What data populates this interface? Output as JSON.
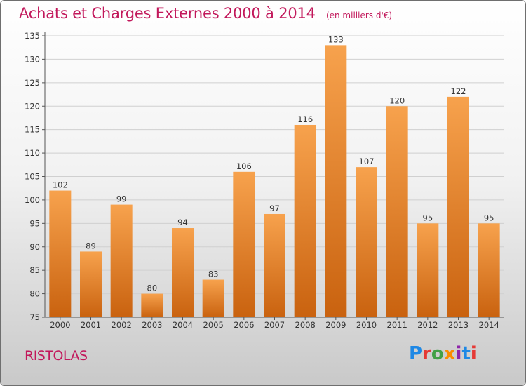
{
  "header": {
    "title": "Achats et Charges Externes 2000 à 2014",
    "unit": "(en milliers d'€)"
  },
  "footer": {
    "town": "RISTOLAS",
    "brand": "Proxiti",
    "brand_letters": [
      {
        "ch": "P",
        "color": "#1e88e5"
      },
      {
        "ch": "r",
        "color": "#e53935"
      },
      {
        "ch": "o",
        "color": "#43a047"
      },
      {
        "ch": "x",
        "color": "#fb8c00"
      },
      {
        "ch": "i",
        "color": "#8e24aa"
      },
      {
        "ch": "t",
        "color": "#1e88e5"
      },
      {
        "ch": "i",
        "color": "#e53935"
      }
    ]
  },
  "chart_data": {
    "type": "bar",
    "title": "Achats et Charges Externes 2000 à 2014",
    "categories": [
      "2000",
      "2001",
      "2002",
      "2003",
      "2004",
      "2005",
      "2006",
      "2007",
      "2008",
      "2009",
      "2010",
      "2011",
      "2012",
      "2013",
      "2014"
    ],
    "values": [
      102,
      89,
      99,
      80,
      94,
      83,
      106,
      97,
      116,
      133,
      107,
      120,
      95,
      122,
      95
    ],
    "ylim": [
      75,
      135
    ],
    "yticks": [
      75,
      80,
      85,
      90,
      95,
      100,
      105,
      110,
      115,
      120,
      125,
      130,
      135
    ],
    "grid": true,
    "bar_color_top": "#f7a24d",
    "bar_color_bottom": "#c9620f",
    "data_labels": true
  }
}
